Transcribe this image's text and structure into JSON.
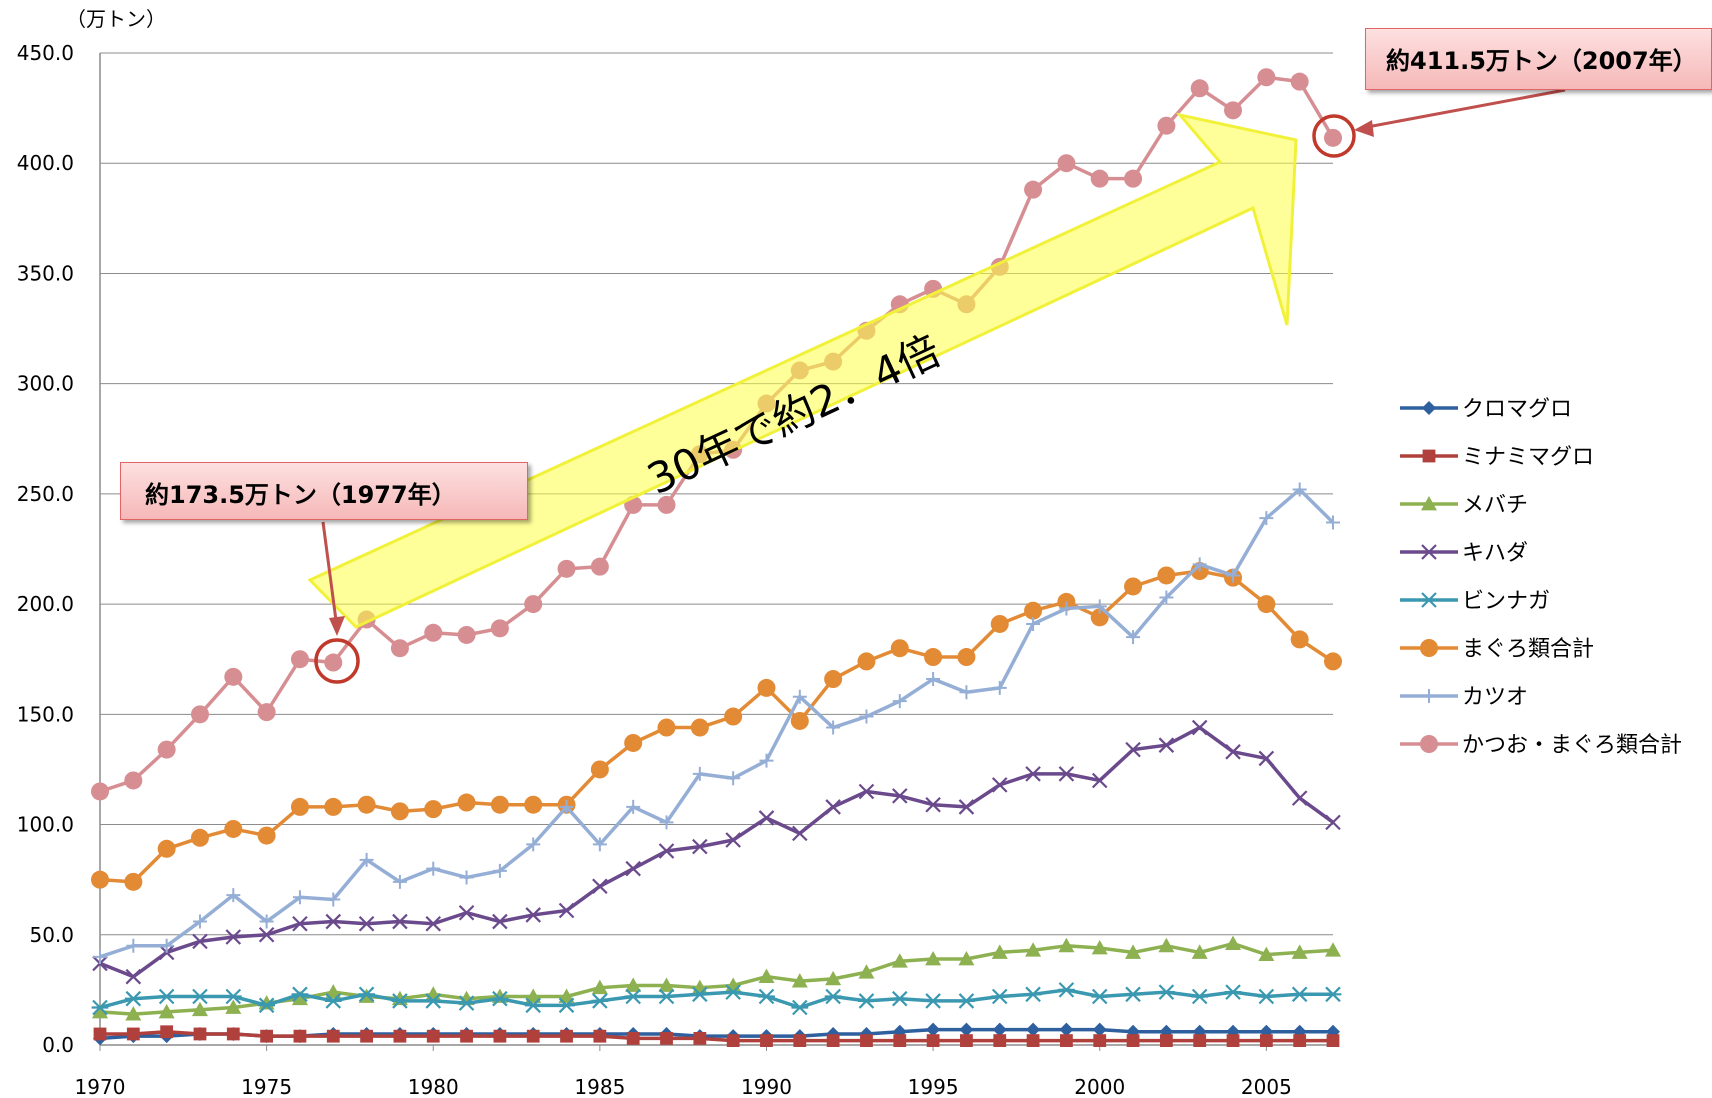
{
  "chart_data": {
    "type": "line",
    "unit_label": "（万トン）",
    "x": [
      1970,
      1971,
      1972,
      1973,
      1974,
      1975,
      1976,
      1977,
      1978,
      1979,
      1980,
      1981,
      1982,
      1983,
      1984,
      1985,
      1986,
      1987,
      1988,
      1989,
      1990,
      1991,
      1992,
      1993,
      1994,
      1995,
      1996,
      1997,
      1998,
      1999,
      2000,
      2001,
      2002,
      2003,
      2004,
      2005,
      2006,
      2007
    ],
    "x_tick_labels": [
      "1970",
      "1975",
      "1980",
      "1985",
      "1990",
      "1995",
      "2000",
      "2005"
    ],
    "y_tick_labels": [
      "0.0",
      "50.0",
      "100.0",
      "150.0",
      "200.0",
      "250.0",
      "300.0",
      "350.0",
      "400.0",
      "450.0"
    ],
    "ylim": [
      0,
      450
    ],
    "grid": "horizontal",
    "legend_position": "right",
    "series": [
      {
        "name": "クロマグロ",
        "color": "#2e5f9e",
        "marker": "diamond",
        "values": [
          3,
          4,
          4,
          5,
          5,
          4,
          4,
          5,
          5,
          5,
          5,
          5,
          5,
          5,
          5,
          5,
          5,
          5,
          4,
          4,
          4,
          4,
          5,
          5,
          6,
          7,
          7,
          7,
          7,
          7,
          7,
          6,
          6,
          6,
          6,
          6,
          6,
          6
        ]
      },
      {
        "name": "ミナミマグロ",
        "color": "#b0403c",
        "marker": "square",
        "values": [
          5,
          5,
          6,
          5,
          5,
          4,
          4,
          4,
          4,
          4,
          4,
          4,
          4,
          4,
          4,
          4,
          3,
          3,
          3,
          2,
          2,
          2,
          2,
          2,
          2,
          2,
          2,
          2,
          2,
          2,
          2,
          2,
          2,
          2,
          2,
          2,
          2,
          2
        ]
      },
      {
        "name": "メバチ",
        "color": "#8db050",
        "marker": "triangle",
        "values": [
          15,
          14,
          15,
          16,
          17,
          19,
          21,
          24,
          22,
          21,
          23,
          21,
          22,
          22,
          22,
          26,
          27,
          27,
          26,
          27,
          31,
          29,
          30,
          33,
          38,
          39,
          39,
          42,
          43,
          45,
          44,
          42,
          45,
          42,
          46,
          41,
          42,
          43
        ]
      },
      {
        "name": "キハダ",
        "color": "#6a4a8c",
        "marker": "x",
        "values": [
          37,
          31,
          42,
          47,
          49,
          50,
          55,
          56,
          55,
          56,
          55,
          60,
          56,
          59,
          61,
          72,
          80,
          88,
          90,
          93,
          103,
          96,
          108,
          115,
          113,
          109,
          108,
          118,
          123,
          123,
          120,
          134,
          136,
          144,
          133,
          130,
          112,
          101
        ]
      },
      {
        "name": "ビンナガ",
        "color": "#3a98b0",
        "marker": "star",
        "values": [
          17,
          21,
          22,
          22,
          22,
          18,
          23,
          20,
          23,
          20,
          20,
          19,
          21,
          18,
          18,
          20,
          22,
          22,
          23,
          24,
          22,
          17,
          22,
          20,
          21,
          20,
          20,
          22,
          23,
          25,
          22,
          23,
          24,
          22,
          24,
          22,
          23,
          23
        ]
      },
      {
        "name": "まぐろ類合計",
        "color": "#e38a35",
        "marker": "circle",
        "values": [
          75,
          74,
          89,
          94,
          98,
          95,
          108,
          108,
          109,
          106,
          107,
          110,
          109,
          109,
          109,
          125,
          137,
          144,
          144,
          149,
          162,
          147,
          166,
          174,
          180,
          176,
          176,
          191,
          197,
          201,
          194,
          208,
          213,
          215,
          212,
          200,
          184,
          174
        ]
      },
      {
        "name": "カツオ",
        "color": "#95aed6",
        "marker": "plus",
        "values": [
          40,
          45,
          45,
          56,
          68,
          56,
          67,
          66,
          84,
          74,
          80,
          76,
          79,
          91,
          108,
          91,
          108,
          101,
          123,
          121,
          129,
          158,
          144,
          149,
          156,
          166,
          160,
          162,
          191,
          198,
          199,
          185,
          203,
          218,
          213,
          239,
          252,
          237
        ]
      },
      {
        "name": "かつお・まぐろ類合計",
        "color": "#d68e92",
        "marker": "circle",
        "values": [
          115,
          120,
          134,
          150,
          167,
          151,
          175,
          173.5,
          193,
          180,
          187,
          186,
          189,
          200,
          216,
          217,
          245,
          245,
          268,
          270,
          291,
          306,
          310,
          324,
          336,
          343,
          336,
          353,
          388,
          400,
          393,
          393,
          417,
          434,
          424,
          439,
          437,
          411.5
        ]
      }
    ],
    "annotations": {
      "callout_1977": "約173.5万トン（1977年）",
      "callout_2007": "約411.5万トン（2007年）",
      "arrow_text": "30年で約2．4倍"
    }
  }
}
